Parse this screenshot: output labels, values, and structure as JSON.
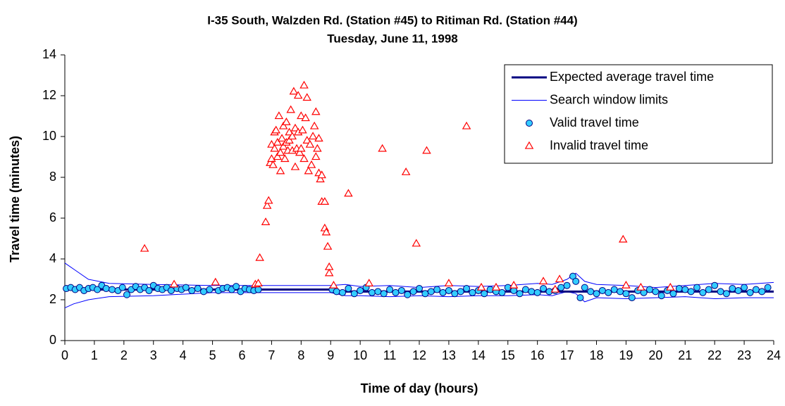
{
  "chart_data": {
    "type": "scatter",
    "title": "I-35 South, Walzden Rd. (Station #45) to Ritiman Rd. (Station #44)",
    "subtitle": "Tuesday, June 11, 1998",
    "x_label": "Time of day (hours)",
    "y_label": "Travel time (minutes)",
    "xlim": [
      0,
      24
    ],
    "xticks": [
      0,
      1,
      2,
      3,
      4,
      5,
      6,
      7,
      8,
      9,
      10,
      11,
      12,
      13,
      14,
      15,
      16,
      17,
      18,
      19,
      20,
      21,
      22,
      23,
      24
    ],
    "ylim": [
      0,
      14
    ],
    "yticks": [
      0,
      2,
      4,
      6,
      8,
      10,
      12,
      14
    ],
    "grid": false,
    "legend": "top-right",
    "series": [
      {
        "name": "Expected average travel time",
        "color": "#000080",
        "marker": "line",
        "x": [
          0,
          5,
          9,
          9.05,
          24
        ],
        "values": [
          2.5,
          2.5,
          2.5,
          2.4,
          2.4
        ]
      },
      {
        "name": "Search window limits",
        "color": "#0000ff",
        "marker": "band",
        "x": [
          0,
          0.3,
          0.8,
          1.5,
          3,
          5,
          9,
          9.5,
          10,
          11,
          12,
          13,
          14,
          15,
          16,
          16.5,
          17,
          17.3,
          17.6,
          18,
          19,
          20,
          21,
          22,
          23,
          24
        ],
        "values": [
          3.8,
          3.5,
          3.0,
          2.8,
          2.75,
          2.7,
          2.7,
          2.75,
          2.65,
          2.7,
          2.6,
          2.7,
          2.65,
          2.7,
          2.8,
          2.75,
          3.0,
          3.3,
          2.9,
          2.75,
          2.7,
          2.6,
          2.7,
          2.8,
          2.75,
          2.85
        ],
        "lower": [
          1.6,
          1.8,
          2.0,
          2.15,
          2.2,
          2.35,
          2.35,
          2.2,
          2.2,
          2.15,
          2.2,
          2.15,
          2.2,
          2.2,
          2.25,
          2.2,
          2.4,
          2.3,
          1.9,
          2.1,
          2.05,
          2.1,
          2.15,
          2.05,
          2.1,
          2.1
        ]
      },
      {
        "name": "Valid travel time",
        "color": "#33ccff",
        "marker": "circle",
        "x": [
          0.05,
          0.2,
          0.35,
          0.5,
          0.65,
          0.8,
          0.95,
          1.1,
          1.25,
          1.4,
          1.6,
          1.8,
          1.95,
          2.1,
          2.25,
          2.4,
          2.55,
          2.7,
          2.85,
          3.0,
          3.15,
          3.3,
          3.45,
          3.6,
          3.8,
          3.95,
          4.1,
          4.3,
          4.5,
          4.7,
          4.9,
          5.2,
          5.35,
          5.5,
          5.65,
          5.8,
          5.95,
          6.1,
          6.25,
          6.4,
          6.55,
          9.05,
          9.2,
          9.4,
          9.6,
          9.8,
          10,
          10.2,
          10.4,
          10.6,
          10.8,
          11,
          11.2,
          11.4,
          11.6,
          11.8,
          12,
          12.2,
          12.4,
          12.6,
          12.8,
          13,
          13.2,
          13.4,
          13.6,
          13.8,
          14,
          14.2,
          14.4,
          14.6,
          14.8,
          15,
          15.2,
          15.4,
          15.6,
          15.8,
          16,
          16.2,
          16.4,
          16.6,
          16.8,
          17,
          17.2,
          17.3,
          17.45,
          17.6,
          17.8,
          18,
          18.2,
          18.4,
          18.6,
          18.8,
          19,
          19.2,
          19.4,
          19.6,
          19.8,
          20,
          20.2,
          20.4,
          20.6,
          20.8,
          21,
          21.2,
          21.4,
          21.6,
          21.8,
          22,
          22.2,
          22.4,
          22.6,
          22.8,
          23,
          23.2,
          23.4,
          23.6,
          23.8
        ],
        "values": [
          2.55,
          2.6,
          2.5,
          2.6,
          2.45,
          2.55,
          2.6,
          2.5,
          2.7,
          2.55,
          2.5,
          2.45,
          2.6,
          2.25,
          2.5,
          2.65,
          2.5,
          2.6,
          2.45,
          2.7,
          2.55,
          2.5,
          2.6,
          2.45,
          2.55,
          2.5,
          2.6,
          2.45,
          2.55,
          2.4,
          2.5,
          2.45,
          2.55,
          2.6,
          2.5,
          2.65,
          2.4,
          2.55,
          2.5,
          2.45,
          2.5,
          2.5,
          2.4,
          2.35,
          2.55,
          2.3,
          2.45,
          2.6,
          2.35,
          2.4,
          2.3,
          2.5,
          2.35,
          2.45,
          2.25,
          2.4,
          2.55,
          2.3,
          2.4,
          2.5,
          2.35,
          2.45,
          2.3,
          2.4,
          2.55,
          2.35,
          2.45,
          2.3,
          2.5,
          2.4,
          2.35,
          2.6,
          2.45,
          2.3,
          2.5,
          2.4,
          2.35,
          2.55,
          2.4,
          2.45,
          2.6,
          2.7,
          3.15,
          2.9,
          2.1,
          2.6,
          2.4,
          2.3,
          2.45,
          2.35,
          2.5,
          2.4,
          2.3,
          2.1,
          2.45,
          2.35,
          2.5,
          2.4,
          2.2,
          2.45,
          2.3,
          2.55,
          2.5,
          2.4,
          2.6,
          2.35,
          2.5,
          2.7,
          2.4,
          2.3,
          2.55,
          2.45,
          2.6,
          2.35,
          2.5,
          2.4,
          2.6
        ]
      },
      {
        "name": "Invalid travel time",
        "color": "#ff0000",
        "marker": "triangle",
        "x": [
          2.7,
          3.7,
          5.1,
          6.45,
          6.55,
          6.6,
          6.8,
          6.85,
          6.9,
          6.95,
          7.0,
          7.0,
          7.05,
          7.1,
          7.1,
          7.15,
          7.2,
          7.2,
          7.25,
          7.3,
          7.3,
          7.35,
          7.4,
          7.4,
          7.45,
          7.5,
          7.5,
          7.55,
          7.6,
          7.6,
          7.65,
          7.7,
          7.7,
          7.75,
          7.8,
          7.8,
          7.85,
          7.9,
          7.9,
          7.95,
          8.0,
          8.0,
          8.05,
          8.1,
          8.1,
          8.15,
          8.2,
          8.2,
          8.25,
          8.3,
          8.35,
          8.4,
          8.45,
          8.5,
          8.5,
          8.55,
          8.6,
          8.6,
          8.65,
          8.7,
          8.7,
          8.8,
          8.8,
          8.85,
          8.9,
          8.95,
          8.95,
          9.1,
          9.6,
          10.3,
          10.75,
          11.55,
          11.9,
          12.25,
          13.0,
          13.6,
          14.1,
          14.6,
          15.2,
          16.2,
          16.6,
          16.75,
          18.9,
          19.0,
          19.5,
          20.5
        ],
        "values": [
          4.5,
          2.75,
          2.85,
          2.75,
          2.8,
          4.05,
          5.8,
          6.6,
          6.85,
          8.7,
          9.6,
          8.9,
          8.6,
          9.4,
          10.2,
          10.3,
          9.0,
          9.7,
          11.0,
          8.3,
          9.2,
          9.9,
          10.5,
          9.5,
          8.9,
          10.7,
          9.7,
          9.3,
          10.2,
          9.8,
          11.3,
          10.0,
          9.3,
          12.2,
          8.5,
          10.4,
          9.4,
          10.2,
          12.0,
          9.2,
          11.0,
          9.4,
          10.3,
          12.5,
          8.9,
          10.9,
          11.9,
          9.8,
          8.3,
          9.6,
          8.6,
          10.0,
          10.5,
          11.2,
          9.0,
          9.4,
          9.9,
          8.2,
          7.9,
          8.1,
          6.8,
          6.8,
          5.5,
          5.3,
          4.6,
          3.6,
          3.3,
          2.7,
          7.2,
          2.8,
          9.4,
          8.25,
          4.75,
          9.3,
          2.8,
          10.5,
          2.6,
          2.6,
          2.7,
          2.9,
          2.5,
          3.0,
          4.95,
          2.7,
          2.6,
          2.6
        ]
      }
    ]
  }
}
